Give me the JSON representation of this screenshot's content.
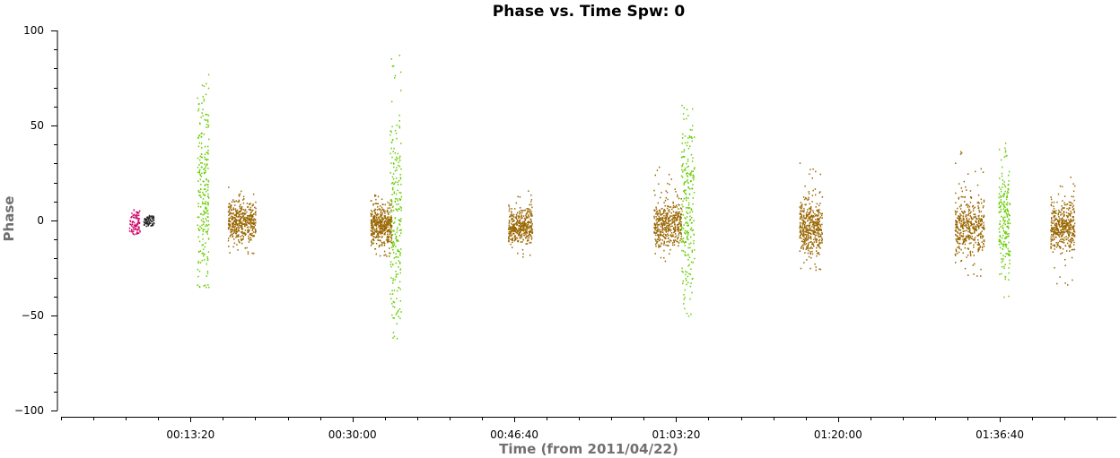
{
  "chart_data": {
    "type": "scatter",
    "title": "Phase vs. Time Spw: 0",
    "xlabel": "Time (from 2011/04/22)",
    "ylabel": "Phase",
    "ylim": [
      -100,
      100
    ],
    "xlim_seconds": [
      0,
      6520
    ],
    "x_ticks": [
      {
        "label": "00:13:20",
        "seconds": 800
      },
      {
        "label": "00:30:00",
        "seconds": 1800
      },
      {
        "label": "00:46:40",
        "seconds": 2800
      },
      {
        "label": "01:03:20",
        "seconds": 3800
      },
      {
        "label": "01:20:00",
        "seconds": 4800
      },
      {
        "label": "01:36:40",
        "seconds": 5800
      }
    ],
    "y_ticks": [
      100,
      50,
      0,
      -50,
      -100
    ],
    "grid": false,
    "legend": "none",
    "series": [
      {
        "color": "#cc0066",
        "clusters": [
          {
            "t_start": 420,
            "t_end": 485,
            "center": -1,
            "spread": 4,
            "min": -7,
            "max": 6,
            "count": 90
          }
        ]
      },
      {
        "color": "#222222",
        "clusters": [
          {
            "t_start": 508,
            "t_end": 575,
            "center": 0,
            "spread": 2,
            "min": -3,
            "max": 3,
            "count": 70
          }
        ]
      },
      {
        "color": "#66cc00",
        "clusters": [
          {
            "t_start": 840,
            "t_end": 910,
            "center": 15,
            "spread": 28,
            "min": -35,
            "max": 78,
            "count": 230
          },
          {
            "t_start": 2030,
            "t_end": 2100,
            "center": 5,
            "spread": 30,
            "min": -62,
            "max": 92,
            "count": 230
          },
          {
            "t_start": 3830,
            "t_end": 3910,
            "center": 5,
            "spread": 25,
            "min": -50,
            "max": 61,
            "count": 230
          },
          {
            "t_start": 5790,
            "t_end": 5860,
            "center": 0,
            "spread": 15,
            "min": -43,
            "max": 46,
            "count": 200
          }
        ]
      },
      {
        "color": "#996600",
        "clusters": [
          {
            "t_start": 1030,
            "t_end": 1200,
            "center": 0,
            "spread": 5,
            "min": -18,
            "max": 20,
            "count": 420
          },
          {
            "t_start": 1910,
            "t_end": 2040,
            "center": -2,
            "spread": 5,
            "min": -19,
            "max": 14,
            "count": 420
          },
          {
            "t_start": 2760,
            "t_end": 2910,
            "center": -2,
            "spread": 5,
            "min": -21,
            "max": 17,
            "count": 380
          },
          {
            "t_start": 3660,
            "t_end": 3830,
            "center": -2,
            "spread": 6,
            "min": -23,
            "max": 29,
            "count": 420
          },
          {
            "t_start": 4560,
            "t_end": 4700,
            "center": -3,
            "spread": 7,
            "min": -27,
            "max": 34,
            "count": 420
          },
          {
            "t_start": 5520,
            "t_end": 5700,
            "center": -3,
            "spread": 7,
            "min": -30,
            "max": 37,
            "count": 420
          },
          {
            "t_start": 6110,
            "t_end": 6260,
            "center": -2,
            "spread": 7,
            "min": -36,
            "max": 25,
            "count": 420
          }
        ]
      }
    ]
  }
}
